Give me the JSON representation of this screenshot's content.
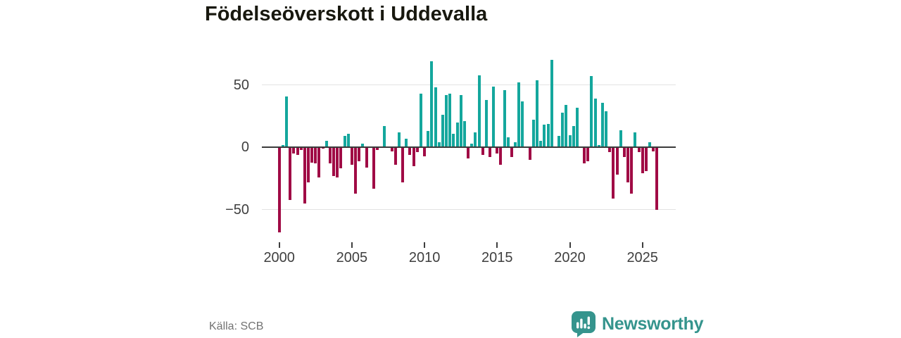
{
  "header": {
    "title": "Födelseöverskott i Uddevalla"
  },
  "footer": {
    "source": "Källa: SCB",
    "branding": {
      "name": "Newsworthy",
      "logo_icon": "speech-bubble-bar-chart"
    }
  },
  "colors": {
    "positive_bar": "#14a79d",
    "negative_bar": "#a00b45",
    "zero_line": "#3b3b3b",
    "gridline": "#e3e3e3",
    "axis_text": "#3f3f3f",
    "title_text": "#18180f",
    "source_text": "#737373",
    "brand_teal": "#35948d",
    "background": "#ffffff"
  },
  "chart_data": {
    "type": "bar",
    "title": "Födelseöverskott i Uddevalla",
    "xlabel": "",
    "ylabel": "",
    "frequency": "quarterly",
    "x_start": "2000 Q1",
    "x_end": "2026 Q1",
    "x_ticks": [
      "2000",
      "2005",
      "2010",
      "2015",
      "2020",
      "2025"
    ],
    "y_ticks": [
      {
        "value": 50,
        "label": "50"
      },
      {
        "value": 0,
        "label": "0"
      },
      {
        "value": -50,
        "label": "−50"
      }
    ],
    "y_gridlines": [
      50,
      -50
    ],
    "ylim": [
      -75,
      75
    ],
    "grid": "horizontal-only",
    "legend": "none",
    "series": [
      {
        "name": "Födelseöverskott",
        "values": [
          -68,
          2,
          41,
          -42,
          -5,
          -6,
          -2,
          -45,
          -28,
          -12,
          -13,
          -24,
          -1,
          5,
          -13,
          -23,
          -24,
          -17,
          9,
          11,
          -14,
          -37,
          -11,
          3,
          -16,
          1,
          -33,
          -2,
          1,
          17,
          1,
          -3,
          -14,
          12,
          -28,
          7,
          -6,
          -15,
          -4,
          43,
          -7,
          13,
          69,
          48,
          4,
          26,
          42,
          43,
          11,
          20,
          42,
          21,
          -9,
          3,
          12,
          58,
          -6,
          38,
          -8,
          49,
          -5,
          -14,
          46,
          8,
          -8,
          4,
          52,
          37,
          1,
          -10,
          22,
          54,
          5,
          18,
          19,
          70,
          1,
          9,
          28,
          34,
          10,
          17,
          32,
          1,
          -13,
          -11,
          57,
          39,
          2,
          36,
          29,
          -4,
          -41,
          -22,
          14,
          -8,
          -28,
          -37,
          12,
          -4,
          -21,
          -19,
          4,
          -3,
          -50
        ]
      }
    ]
  }
}
